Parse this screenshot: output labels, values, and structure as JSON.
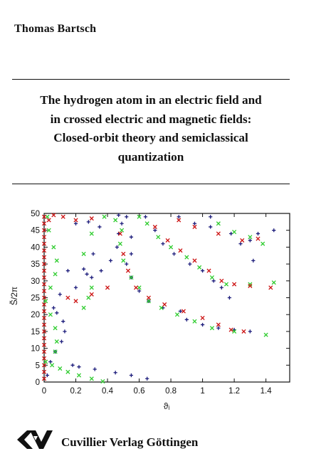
{
  "cover": {
    "author": "Thomas Bartsch",
    "title_lines": [
      "The hydrogen atom in an electric field and",
      "in crossed electric and magnetic fields:",
      "Closed-orbit theory and semiclassical",
      "quantization"
    ],
    "publisher": "Cuvillier Verlag Göttingen",
    "publisher_logo_icon": "cuvillier-logo-icon"
  },
  "chart_data": {
    "type": "scatter",
    "xlabel": "ϑᵢ",
    "ylabel": "S̃/2π",
    "xlim": [
      0,
      1.55
    ],
    "ylim": [
      0,
      50
    ],
    "xticks": [
      0,
      0.2,
      0.4,
      0.6,
      0.8,
      1,
      1.2,
      1.4
    ],
    "xtick_labels": [
      "0",
      "0.2",
      "0.4",
      "0.6",
      "0.8",
      "1",
      "1.2",
      "1.4"
    ],
    "yticks": [
      0,
      5,
      10,
      15,
      20,
      25,
      30,
      35,
      40,
      45,
      50
    ],
    "grid": false,
    "legend": "none",
    "series": [
      {
        "marker": "plus",
        "color": "#1a1a7a",
        "points": [
          [
            0.02,
            2
          ],
          [
            0.04,
            6
          ],
          [
            0.07,
            9
          ],
          [
            0.11,
            12
          ],
          [
            0.13,
            15
          ],
          [
            0.12,
            18
          ],
          [
            0.08,
            20.5
          ],
          [
            0.06,
            22
          ],
          [
            0.1,
            26
          ],
          [
            0.2,
            28
          ],
          [
            0.3,
            31
          ],
          [
            0.36,
            33
          ],
          [
            0.42,
            36
          ],
          [
            0.46,
            40
          ],
          [
            0.47,
            44
          ],
          [
            0.49,
            47
          ],
          [
            0.52,
            49
          ],
          [
            0.55,
            43
          ],
          [
            0.55,
            38
          ],
          [
            0.52,
            35
          ],
          [
            0.55,
            31
          ],
          [
            0.6,
            27
          ],
          [
            0.66,
            24
          ],
          [
            0.75,
            22
          ],
          [
            0.86,
            21
          ],
          [
            0.9,
            18.5
          ],
          [
            1.0,
            17
          ],
          [
            1.1,
            16
          ],
          [
            1.2,
            15.5
          ],
          [
            1.3,
            15
          ],
          [
            0.64,
            49
          ],
          [
            0.7,
            45
          ],
          [
            0.75,
            41
          ],
          [
            0.82,
            38
          ],
          [
            0.92,
            35
          ],
          [
            1.0,
            33
          ],
          [
            1.07,
            30
          ],
          [
            1.12,
            28
          ],
          [
            0.85,
            49
          ],
          [
            0.95,
            47
          ],
          [
            1.05,
            46
          ],
          [
            1.18,
            44
          ],
          [
            1.24,
            41
          ],
          [
            1.3,
            42
          ],
          [
            1.35,
            44
          ],
          [
            1.05,
            49
          ],
          [
            0.2,
            47
          ],
          [
            0.28,
            47.5
          ],
          [
            0.35,
            46
          ],
          [
            0.18,
            5
          ],
          [
            0.22,
            4.5
          ],
          [
            0.32,
            3.8
          ],
          [
            0.45,
            2.8
          ],
          [
            0.55,
            2
          ],
          [
            0.65,
            1
          ],
          [
            0.15,
            33
          ],
          [
            0.25,
            33.5
          ],
          [
            0.31,
            38
          ],
          [
            0.47,
            49.5
          ],
          [
            1.17,
            25
          ],
          [
            1.32,
            36
          ],
          [
            1.45,
            45
          ],
          [
            0.27,
            32
          ]
        ]
      },
      {
        "marker": "cross",
        "color": "#2ecc2e",
        "points": [
          [
            0.01,
            6
          ],
          [
            0.05,
            5
          ],
          [
            0.07,
            9
          ],
          [
            0.08,
            12
          ],
          [
            0.07,
            16
          ],
          [
            0.04,
            20
          ],
          [
            0.01,
            24
          ],
          [
            0.04,
            28
          ],
          [
            0.07,
            32
          ],
          [
            0.08,
            36
          ],
          [
            0.06,
            40
          ],
          [
            0.03,
            45
          ],
          [
            0.02,
            49
          ],
          [
            0.1,
            4
          ],
          [
            0.15,
            3
          ],
          [
            0.22,
            2
          ],
          [
            0.3,
            1
          ],
          [
            0.37,
            0.2
          ],
          [
            0.49,
            45
          ],
          [
            0.48,
            41
          ],
          [
            0.5,
            36
          ],
          [
            0.55,
            31
          ],
          [
            0.6,
            28
          ],
          [
            0.66,
            24
          ],
          [
            0.74,
            22
          ],
          [
            0.84,
            20
          ],
          [
            0.95,
            18
          ],
          [
            1.06,
            16
          ],
          [
            1.2,
            15
          ],
          [
            1.4,
            14
          ],
          [
            0.65,
            47
          ],
          [
            0.72,
            43
          ],
          [
            0.8,
            40
          ],
          [
            0.9,
            37
          ],
          [
            0.98,
            34
          ],
          [
            1.06,
            31
          ],
          [
            1.15,
            29
          ],
          [
            1.3,
            29
          ],
          [
            1.45,
            29.5
          ],
          [
            0.6,
            49
          ],
          [
            1.1,
            47
          ],
          [
            1.2,
            44.5
          ],
          [
            1.3,
            43
          ],
          [
            1.38,
            41
          ],
          [
            0.3,
            28
          ],
          [
            0.28,
            25
          ],
          [
            0.25,
            22
          ],
          [
            0.25,
            38
          ],
          [
            0.3,
            44
          ],
          [
            0.38,
            49
          ],
          [
            0.45,
            48
          ]
        ]
      },
      {
        "marker": "cross",
        "color": "#cc1111",
        "points": [
          [
            0.0,
            1
          ],
          [
            0.0,
            3
          ],
          [
            0.0,
            5
          ],
          [
            0.0,
            7
          ],
          [
            0.0,
            9
          ],
          [
            0.0,
            11
          ],
          [
            0.0,
            13
          ],
          [
            0.0,
            15
          ],
          [
            0.0,
            17
          ],
          [
            0.0,
            19
          ],
          [
            0.0,
            21
          ],
          [
            0.0,
            23
          ],
          [
            0.0,
            25
          ],
          [
            0.0,
            27
          ],
          [
            0.0,
            29
          ],
          [
            0.0,
            31
          ],
          [
            0.0,
            33
          ],
          [
            0.0,
            35
          ],
          [
            0.0,
            37
          ],
          [
            0.0,
            39
          ],
          [
            0.0,
            41
          ],
          [
            0.0,
            43
          ],
          [
            0.0,
            45
          ],
          [
            0.0,
            47
          ],
          [
            0.0,
            49
          ],
          [
            0.03,
            48
          ],
          [
            0.06,
            49.5
          ],
          [
            0.12,
            49
          ],
          [
            0.2,
            48
          ],
          [
            0.3,
            48.5
          ],
          [
            0.48,
            44
          ],
          [
            0.5,
            38
          ],
          [
            0.53,
            33
          ],
          [
            0.58,
            28
          ],
          [
            0.66,
            25
          ],
          [
            0.76,
            23
          ],
          [
            0.88,
            21
          ],
          [
            1.0,
            19
          ],
          [
            1.1,
            17
          ],
          [
            1.18,
            15.5
          ],
          [
            1.26,
            15
          ],
          [
            0.7,
            46
          ],
          [
            0.78,
            42
          ],
          [
            0.86,
            39
          ],
          [
            0.95,
            36
          ],
          [
            1.04,
            33
          ],
          [
            1.12,
            30
          ],
          [
            1.2,
            29
          ],
          [
            1.3,
            28.5
          ],
          [
            1.43,
            28
          ],
          [
            0.85,
            48
          ],
          [
            0.95,
            46
          ],
          [
            1.1,
            44
          ],
          [
            1.25,
            42
          ],
          [
            1.35,
            42.5
          ],
          [
            0.15,
            25
          ],
          [
            0.2,
            24
          ],
          [
            0.3,
            26
          ],
          [
            0.4,
            28
          ]
        ]
      }
    ]
  }
}
